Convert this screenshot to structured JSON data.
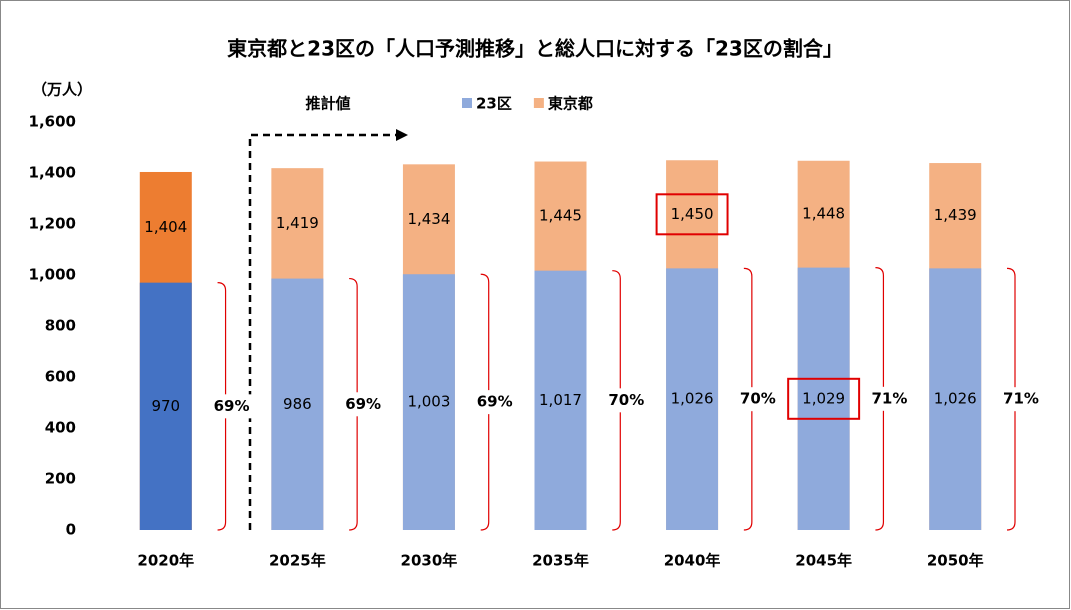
{
  "chart_data": {
    "type": "bar",
    "title": "東京都と23区の「人口予測推移」と総人口に対する「23区の割合」",
    "y_unit": "（万人）",
    "annotation": "推計値",
    "categories": [
      "2020年",
      "2025年",
      "2030年",
      "2035年",
      "2040年",
      "2045年",
      "2050年"
    ],
    "series": [
      {
        "name": "23区",
        "color": "#8faadc",
        "colors": [
          "#4472c4",
          "#8faadc",
          "#8faadc",
          "#8faadc",
          "#8faadc",
          "#8faadc",
          "#8faadc"
        ],
        "values": [
          970,
          986,
          1003,
          1017,
          1026,
          1029,
          1026
        ],
        "value_labels": [
          "970",
          "986",
          "1,003",
          "1,017",
          "1,026",
          "1,029",
          "1,026"
        ],
        "highlight_index": 5
      },
      {
        "name": "東京都",
        "color": "#f4b183",
        "colors": [
          "#ed7d31",
          "#f4b183",
          "#f4b183",
          "#f4b183",
          "#f4b183",
          "#f4b183",
          "#f4b183"
        ],
        "values": [
          1404,
          1419,
          1434,
          1445,
          1450,
          1448,
          1439
        ],
        "value_labels": [
          "1,404",
          "1,419",
          "1,434",
          "1,445",
          "1,450",
          "1,448",
          "1,439"
        ],
        "highlight_index": 4
      }
    ],
    "ratios": {
      "values": [
        69,
        69,
        69,
        70,
        70,
        71,
        71
      ],
      "value_labels": [
        "69%",
        "69%",
        "69%",
        "70%",
        "70%",
        "71%",
        "71%"
      ],
      "colors": [
        "#000000",
        "#ff0000",
        "#ff0000",
        "#ff0000",
        "#ff0000",
        "#ff0000",
        "#ff0000"
      ]
    },
    "ylim": [
      0,
      1600
    ],
    "yticks": [
      0,
      200,
      400,
      600,
      800,
      {
        "value": 1000,
        "label": "1,000"
      },
      {
        "value": 1200,
        "label": "1,200"
      },
      {
        "value": 1400,
        "label": "1,400"
      },
      {
        "value": 1600,
        "label": "1,600"
      }
    ],
    "grid": false
  }
}
